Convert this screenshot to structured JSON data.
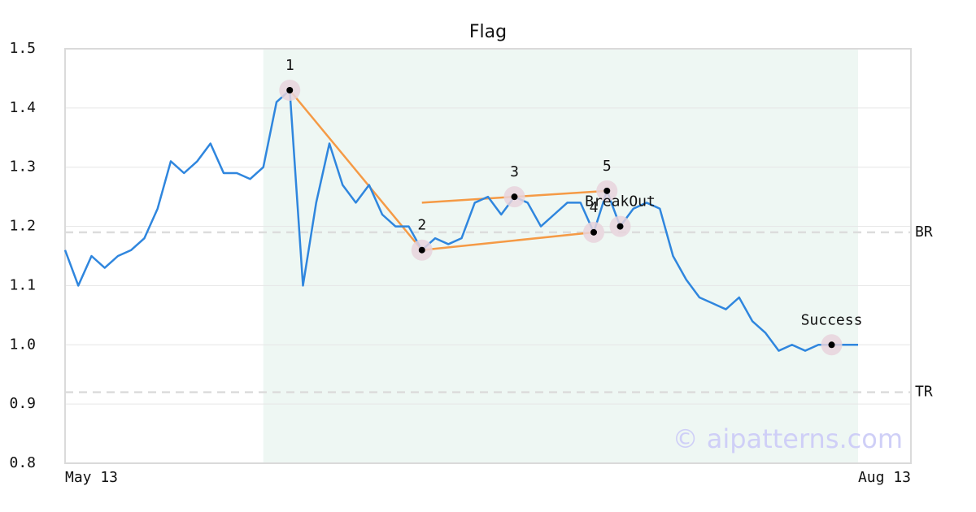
{
  "chart_data": {
    "type": "line",
    "title": "Flag",
    "x": [
      0,
      1,
      2,
      3,
      4,
      5,
      6,
      7,
      8,
      9,
      10,
      11,
      12,
      13,
      14,
      15,
      16,
      17,
      18,
      19,
      20,
      21,
      22,
      23,
      24,
      25,
      26,
      27,
      28,
      29,
      30,
      31,
      32,
      33,
      34,
      35,
      36,
      37,
      38,
      39,
      40,
      41,
      42,
      43,
      44,
      45,
      46,
      47,
      48,
      49,
      50,
      51,
      52,
      53,
      54,
      55,
      56,
      57,
      58,
      59,
      60
    ],
    "series": [
      {
        "color": "#2f86de",
        "values": [
          1.16,
          1.1,
          1.15,
          1.13,
          1.15,
          1.16,
          1.18,
          1.23,
          1.31,
          1.29,
          1.31,
          1.34,
          1.29,
          1.29,
          1.28,
          1.3,
          1.41,
          1.43,
          1.1,
          1.24,
          1.34,
          1.27,
          1.24,
          1.27,
          1.22,
          1.2,
          1.2,
          1.16,
          1.18,
          1.17,
          1.18,
          1.24,
          1.25,
          1.22,
          1.25,
          1.24,
          1.2,
          1.22,
          1.24,
          1.24,
          1.19,
          1.26,
          1.2,
          1.23,
          1.24,
          1.23,
          1.15,
          1.11,
          1.08,
          1.07,
          1.06,
          1.08,
          1.04,
          1.02,
          0.99,
          1.0,
          0.99,
          1.0,
          1.0,
          1.0,
          1.0
        ]
      }
    ],
    "xlim": [
      0,
      64
    ],
    "xticks": [
      {
        "value": 0,
        "label": "May 13"
      },
      {
        "value": 64,
        "label": "Aug 13"
      }
    ],
    "ylim": [
      0.8,
      1.5
    ],
    "yticks": [
      0.8,
      0.9,
      {
        "value": 1,
        "label": "1.0"
      },
      1.1,
      1.2,
      1.3,
      1.4,
      1.5
    ],
    "grid": true,
    "highlight": [
      15,
      60
    ],
    "levels": [
      {
        "label": "BR",
        "value": 1.19
      },
      {
        "label": "TR",
        "value": 0.92
      }
    ],
    "trendlines": [
      {
        "x": [
          17,
          27
        ],
        "y": [
          1.43,
          1.16
        ]
      },
      {
        "x": [
          27,
          40
        ],
        "y": [
          1.16,
          1.19
        ]
      },
      {
        "x": [
          27,
          41
        ],
        "y": [
          1.24,
          1.26
        ]
      }
    ],
    "trend_color": "#f59a45",
    "points": [
      {
        "label": "1",
        "x": 17,
        "y": 1.43
      },
      {
        "label": "2",
        "x": 27,
        "y": 1.16
      },
      {
        "label": "3",
        "x": 34,
        "y": 1.25
      },
      {
        "label": "4",
        "x": 40,
        "y": 1.19
      },
      {
        "label": "5",
        "x": 41,
        "y": 1.26
      },
      {
        "label": "BreakOut",
        "x": 42,
        "y": 1.2
      },
      {
        "label": "Success",
        "x": 58,
        "y": 1.0
      }
    ],
    "watermark": "© aipatterns.com"
  }
}
